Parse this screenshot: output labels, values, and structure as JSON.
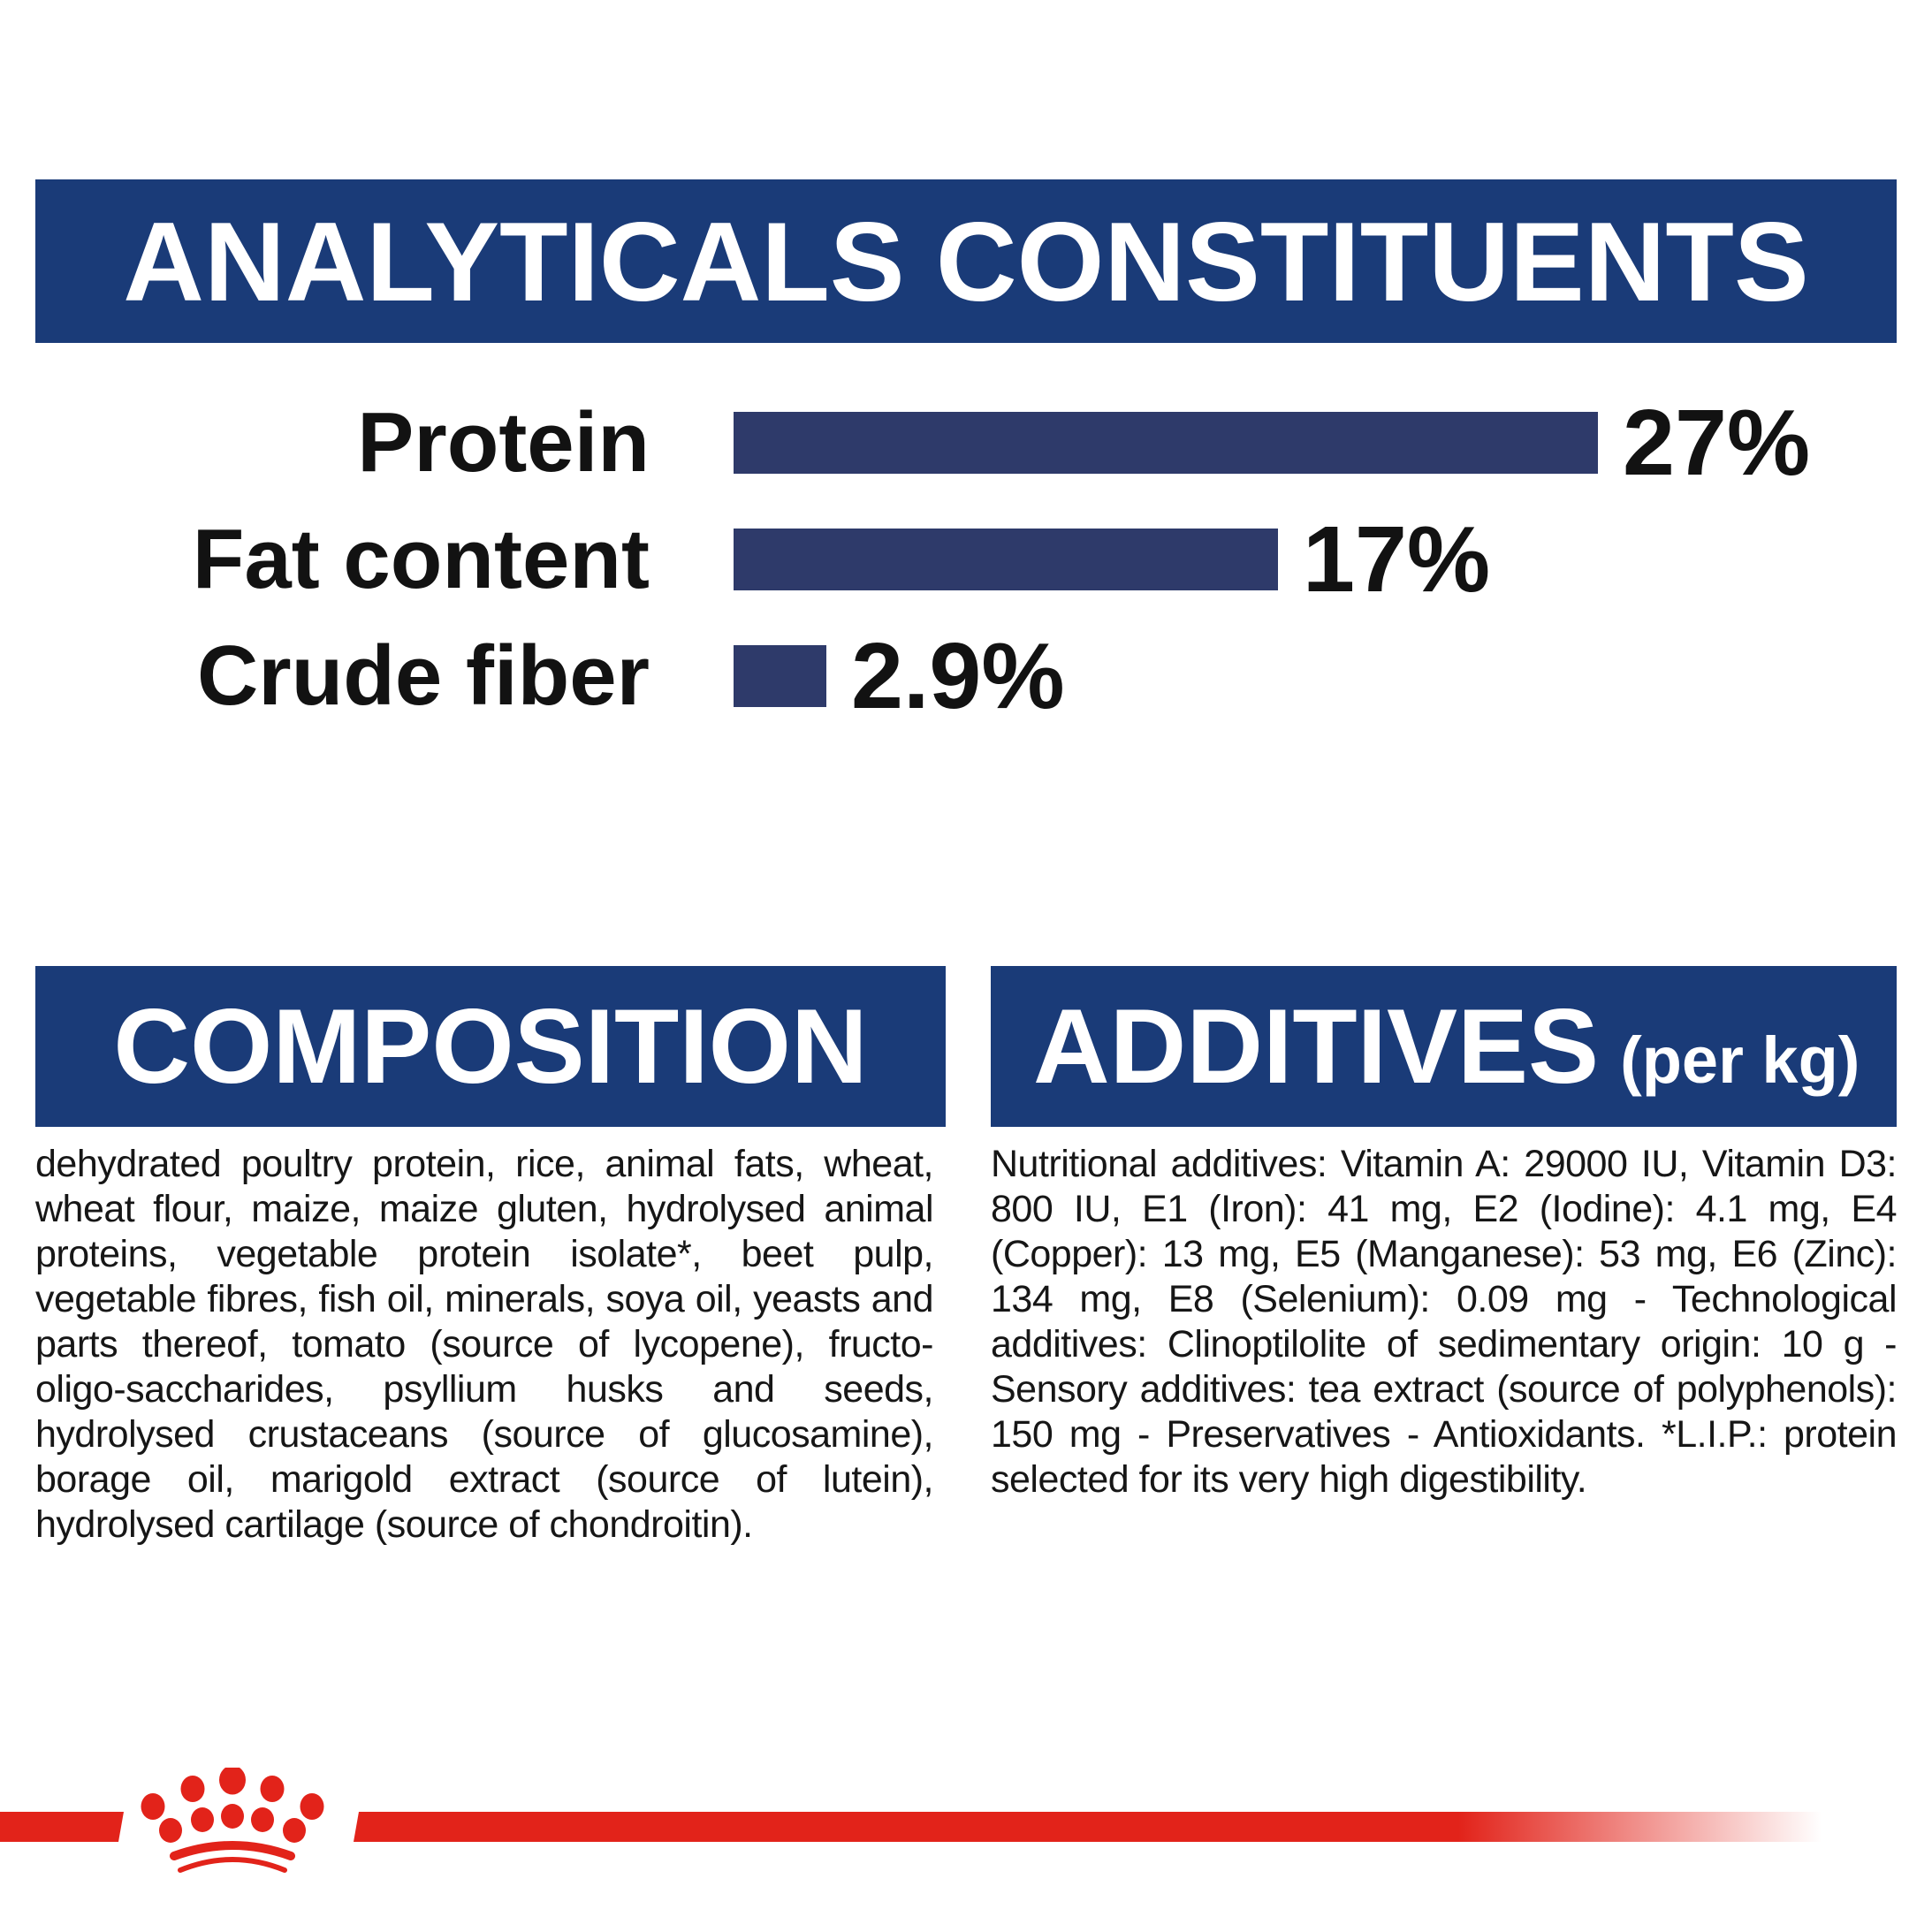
{
  "header": {
    "title": "ANALYTICALS CONSTITUENTS"
  },
  "chart_data": {
    "type": "bar",
    "title": "ANALYTICALS CONSTITUENTS",
    "categories": [
      "Protein",
      "Fat content",
      "Crude fiber"
    ],
    "values": [
      27,
      17,
      2.9
    ],
    "value_labels": [
      "27%",
      "17%",
      "2.9%"
    ],
    "xlabel": "",
    "ylabel": "",
    "xlim": [
      0,
      27
    ],
    "grid": false,
    "legend": "none",
    "bar_color": "#2e3a6a"
  },
  "sections": {
    "composition": {
      "title": "COMPOSITION",
      "body": "dehydrated poultry protein, rice, animal fats, wheat, wheat flour, maize, maize gluten, hydrolysed animal proteins, vegetable protein isolate*, beet pulp, vegetable fibres, fish oil, minerals, soya oil, yeasts and parts thereof, tomato (source of lycopene), fructo-oligo-saccharides, psyllium husks and seeds, hydrolysed crustaceans (source of glucosamine), borage oil, marigold extract (source of lutein), hydrolysed cartilage (source of chondroitin)."
    },
    "additives": {
      "title": "ADDITIVES",
      "title_suffix": "(per kg)",
      "body": "Nutritional additives: Vitamin A: 29000 IU, Vitamin D3: 800 IU, E1 (Iron): 41 mg, E2 (Iodine): 4.1 mg, E4 (Copper): 13 mg, E5 (Manganese): 53 mg, E6 (Zinc): 134 mg, E8 (Selenium): 0.09 mg - Technological additives: Clinoptilolite of sedimentary origin: 10 g - Sensory additives: tea extract (source of polyphenols): 150 mg - Preservatives - Antioxidants. *L.I.P.: protein selected for its very high digestibility."
    }
  },
  "footer": {
    "brand_icon": "royal-canin-crown-icon"
  },
  "colors": {
    "banner_navy": "#1a3b78",
    "bar_navy": "#2e3a6a",
    "accent_red": "#e2231a",
    "text_black": "#161616"
  }
}
